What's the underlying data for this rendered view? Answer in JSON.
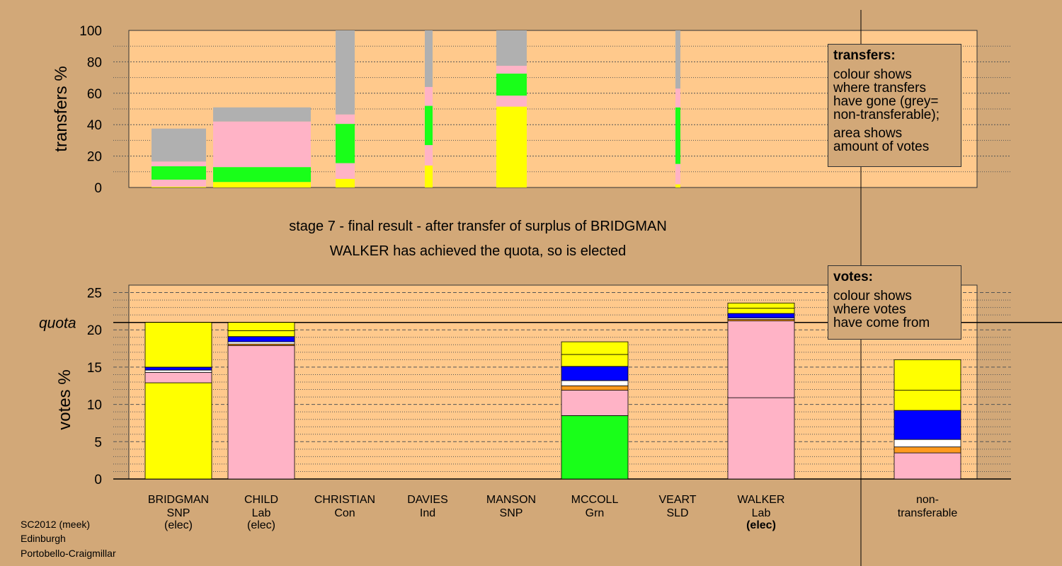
{
  "chart_data": [
    {
      "type": "bar",
      "stacked": true,
      "ylabel": "transfers %",
      "ylim": [
        0,
        100
      ],
      "yticks": [
        "0",
        "20",
        "40",
        "60",
        "80",
        "100"
      ],
      "series_colors": {
        "SNP": "#ffff00",
        "Lab": "#ffb3c6",
        "Grn": "#19ff19",
        "Con": "#0000ff",
        "SLD": "#ff9a1e",
        "Ind": "#ffffff",
        "non-transferable": "#b0b0b0"
      },
      "columns": [
        {
          "candidate": "BRIDGMAN",
          "segments": [
            {
              "party": "SNP",
              "value": 0.5
            },
            {
              "party": "Lab",
              "value": 4.5
            },
            {
              "party": "Grn",
              "value": 8.5
            },
            {
              "party": "Lab",
              "value": 3
            },
            {
              "party": "non-transferable",
              "value": 21
            }
          ]
        },
        {
          "candidate": "CHILD",
          "segments": [
            {
              "party": "SNP",
              "value": 3.5
            },
            {
              "party": "Grn",
              "value": 9.5
            },
            {
              "party": "Lab",
              "value": 29
            },
            {
              "party": "non-transferable",
              "value": 9
            }
          ]
        },
        {
          "candidate": "CHRISTIAN",
          "segments": [
            {
              "party": "SNP",
              "value": 5.5
            },
            {
              "party": "Lab",
              "value": 10
            },
            {
              "party": "Grn",
              "value": 25
            },
            {
              "party": "Lab",
              "value": 6
            },
            {
              "party": "non-transferable",
              "value": 53.5
            }
          ]
        },
        {
          "candidate": "DAVIES",
          "segments": [
            {
              "party": "SNP",
              "value": 14
            },
            {
              "party": "Lab",
              "value": 13
            },
            {
              "party": "Grn",
              "value": 25
            },
            {
              "party": "Lab",
              "value": 12
            },
            {
              "party": "non-transferable",
              "value": 36
            }
          ]
        },
        {
          "candidate": "MANSON",
          "segments": [
            {
              "party": "SNP",
              "value": 51.5
            },
            {
              "party": "Lab",
              "value": 7
            },
            {
              "party": "Grn",
              "value": 14
            },
            {
              "party": "Lab",
              "value": 5
            },
            {
              "party": "non-transferable",
              "value": 22.5
            }
          ]
        },
        {
          "candidate": "VEART",
          "segments": [
            {
              "party": "SNP",
              "value": 2
            },
            {
              "party": "Lab",
              "value": 13
            },
            {
              "party": "Grn",
              "value": 36
            },
            {
              "party": "Lab",
              "value": 12
            },
            {
              "party": "non-transferable",
              "value": 37
            }
          ]
        }
      ]
    },
    {
      "type": "bar",
      "stacked": true,
      "title": "stage 7 - final result - after transfer of surplus of BRIDGMAN",
      "subtitle": "WALKER has achieved the quota, so is elected",
      "ylabel": "votes %",
      "ylim": [
        0,
        26
      ],
      "yticks": [
        "0",
        "5",
        "10",
        "15",
        "20",
        "25"
      ],
      "quota": 21,
      "quota_label": "quota",
      "series_colors": {
        "SNP": "#ffff00",
        "Lab": "#ffb3c6",
        "Grn": "#19ff19",
        "Con": "#0000ff",
        "SLD": "#ff9a1e",
        "Ind": "#ffffff"
      },
      "columns": [
        {
          "candidate": "BRIDGMAN",
          "party": "SNP",
          "status": "(elec)",
          "segments": [
            {
              "party": "SNP",
              "value": 12.9
            },
            {
              "party": "Lab",
              "value": 1.4
            },
            {
              "party": "Ind",
              "value": 0.3
            },
            {
              "party": "Con",
              "value": 0.4
            },
            {
              "party": "SNP",
              "value": 6
            }
          ]
        },
        {
          "candidate": "CHILD",
          "party": "Lab",
          "status": "(elec)",
          "segments": [
            {
              "party": "Lab",
              "value": 17.9
            },
            {
              "party": "SLD",
              "value": 0.2
            },
            {
              "party": "Ind",
              "value": 0.3
            },
            {
              "party": "Con",
              "value": 0.7
            },
            {
              "party": "SNP",
              "value": 0.8
            },
            {
              "party": "SNP",
              "value": 1.1
            }
          ]
        },
        {
          "candidate": "CHRISTIAN",
          "party": "Con",
          "status": "",
          "segments": []
        },
        {
          "candidate": "DAVIES",
          "party": "Ind",
          "status": "",
          "segments": []
        },
        {
          "candidate": "MANSON",
          "party": "SNP",
          "status": "",
          "segments": []
        },
        {
          "candidate": "MCCOLL",
          "party": "Grn",
          "status": "",
          "segments": [
            {
              "party": "Grn",
              "value": 8.5
            },
            {
              "party": "Lab",
              "value": 3.4
            },
            {
              "party": "SLD",
              "value": 0.6
            },
            {
              "party": "Ind",
              "value": 0.7
            },
            {
              "party": "Con",
              "value": 1.9
            },
            {
              "party": "SNP",
              "value": 1.6
            },
            {
              "party": "SNP",
              "value": 1.7
            }
          ]
        },
        {
          "candidate": "VEART",
          "party": "SLD",
          "status": "",
          "segments": []
        },
        {
          "candidate": "WALKER",
          "party": "Lab",
          "status": "(elec)",
          "segments": [
            {
              "party": "Lab",
              "value": 10.9
            },
            {
              "party": "Lab",
              "value": 10.3
            },
            {
              "party": "SLD",
              "value": 0.2
            },
            {
              "party": "Ind",
              "value": 0.2
            },
            {
              "party": "Con",
              "value": 0.6
            },
            {
              "party": "SNP",
              "value": 0.7
            },
            {
              "party": "SNP",
              "value": 0.7
            }
          ]
        },
        {
          "candidate": "non-",
          "party": "transferable",
          "status": "",
          "segments": [
            {
              "party": "Lab",
              "value": 3.5
            },
            {
              "party": "SLD",
              "value": 0.8
            },
            {
              "party": "Ind",
              "value": 1
            },
            {
              "party": "Con",
              "value": 3.9
            },
            {
              "party": "SNP",
              "value": 2.7
            },
            {
              "party": "SNP",
              "value": 4.1
            }
          ]
        }
      ]
    }
  ],
  "legend_transfers": {
    "heading": "transfers:",
    "para1": [
      "colour shows",
      "where transfers",
      "have gone (grey=",
      "non-transferable);"
    ],
    "para2": [
      "area shows",
      "amount of votes"
    ]
  },
  "legend_votes": {
    "heading": "votes:",
    "para1": [
      "colour shows",
      "where votes",
      "have come from"
    ]
  },
  "footer": {
    "line1": "SC2012 (meek)",
    "line2": "Edinburgh",
    "line3": "Portobello-Craigmillar"
  }
}
